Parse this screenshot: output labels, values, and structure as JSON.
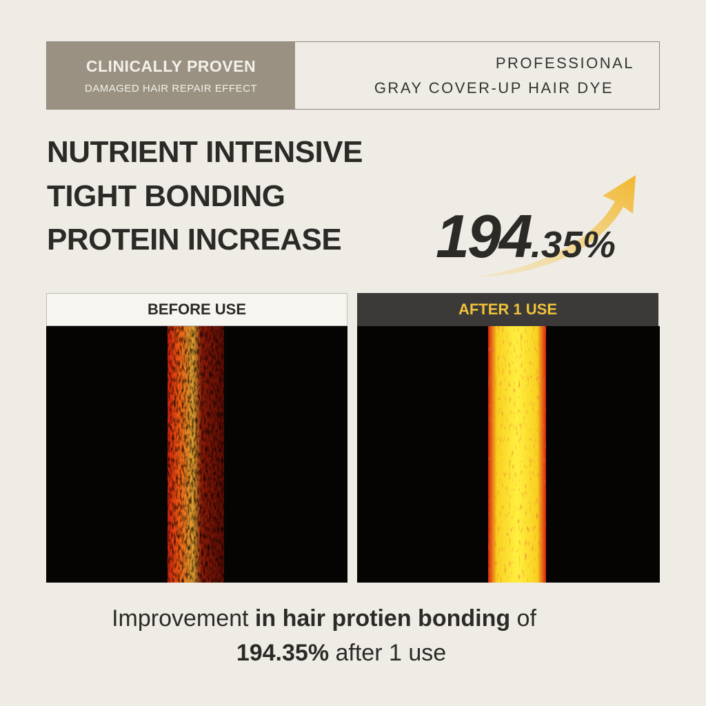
{
  "header": {
    "left": {
      "title": "CLINICALLY PROVEN",
      "subtitle": "DAMAGED HAIR REPAIR EFFECT"
    },
    "right": {
      "line1": "PROFESSIONAL",
      "line2": "GRAY COVER-UP HAIR DYE"
    }
  },
  "headline": [
    "NUTRIENT INTENSIVE",
    "TIGHT BONDING",
    "PROTEIN INCREASE"
  ],
  "stat": {
    "main": "194",
    "suffix": ".35%"
  },
  "panels": [
    {
      "label": "BEFORE USE"
    },
    {
      "label": "AFTER 1 USE"
    }
  ],
  "caption": {
    "lines": [
      [
        {
          "text": "Improvement ",
          "bold": false
        },
        {
          "text": "in hair protien bonding",
          "bold": true
        },
        {
          "text": " of",
          "bold": false
        }
      ],
      [
        {
          "text": "194.35%",
          "bold": true
        },
        {
          "text": " after 1 use",
          "bold": false
        }
      ]
    ]
  }
}
